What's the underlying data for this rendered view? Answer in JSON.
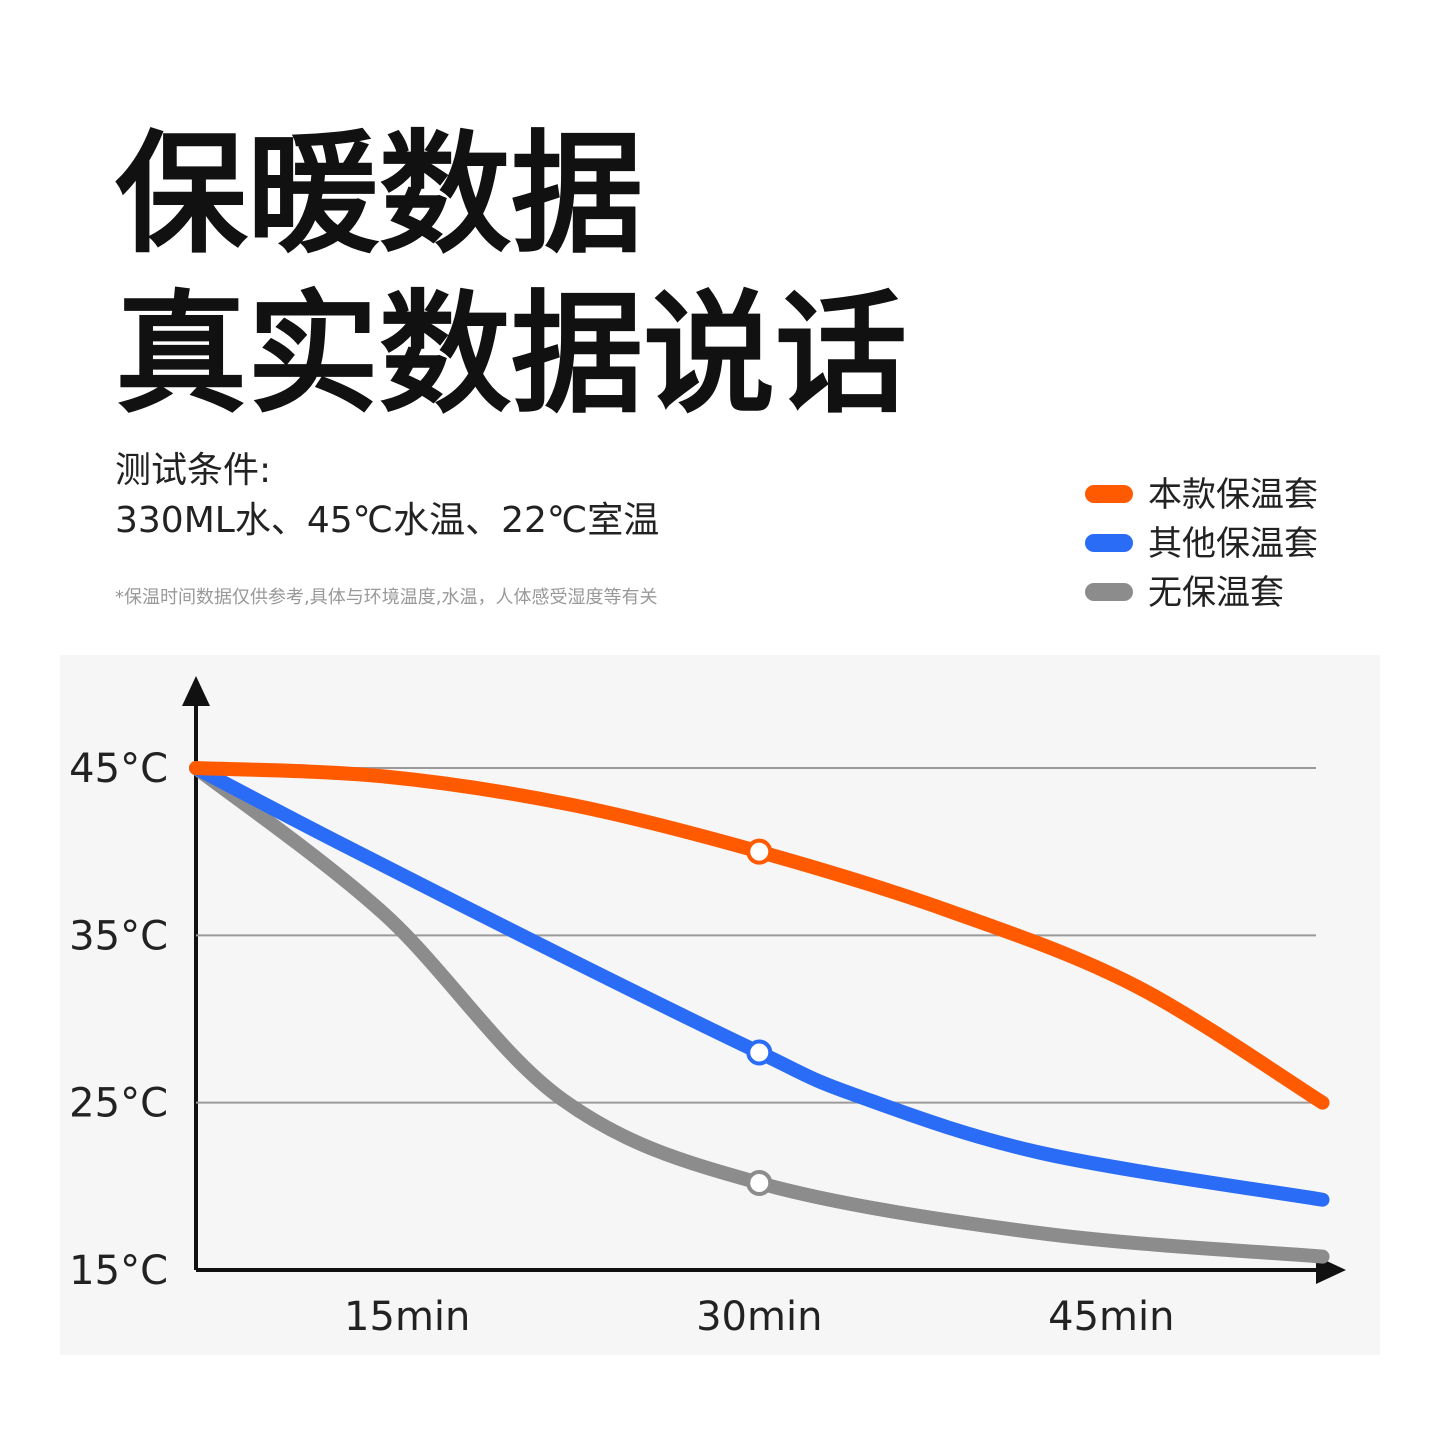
{
  "chart_data": {
    "type": "line",
    "title": [
      "保暖数据",
      "真实数据说话"
    ],
    "subtitle": [
      "测试条件:",
      "330ML水、45℃水温、22℃室温"
    ],
    "annotation": "*保温时间数据仅供参考,具体与环境温度,水温，人体感受湿度等有关",
    "xlim": [
      6,
      55
    ],
    "xticks": [
      {
        "value": 15,
        "label": "15min"
      },
      {
        "value": 30,
        "label": "30min"
      },
      {
        "value": 45,
        "label": "45min"
      }
    ],
    "ylim": [
      15,
      45
    ],
    "yticks": [
      {
        "value": 15,
        "label": "15°C"
      },
      {
        "value": 25,
        "label": "25°C"
      },
      {
        "value": 35,
        "label": "35°C"
      },
      {
        "value": 45,
        "label": "45°C"
      }
    ],
    "grid": true,
    "legend": "top-right",
    "marker_x": 30,
    "series": [
      {
        "name": "本款保温套",
        "color": "#ff5a00",
        "x": [
          6,
          14,
          22,
          30,
          38,
          46,
          54
        ],
        "values": [
          45,
          44.5,
          42.8,
          40,
          36.5,
          32,
          25
        ]
      },
      {
        "name": "其他保温套",
        "color": "#2a6cf5",
        "x": [
          6,
          12,
          22,
          30,
          34,
          42,
          54
        ],
        "values": [
          45,
          40.6,
          33.5,
          28,
          25.5,
          22,
          19.2
        ]
      },
      {
        "name": "无保温套",
        "color": "#8c8c8c",
        "x": [
          6,
          14,
          21.6,
          30,
          42,
          54
        ],
        "values": [
          45,
          36.3,
          25.2,
          20.2,
          17.2,
          15.8
        ]
      }
    ]
  }
}
